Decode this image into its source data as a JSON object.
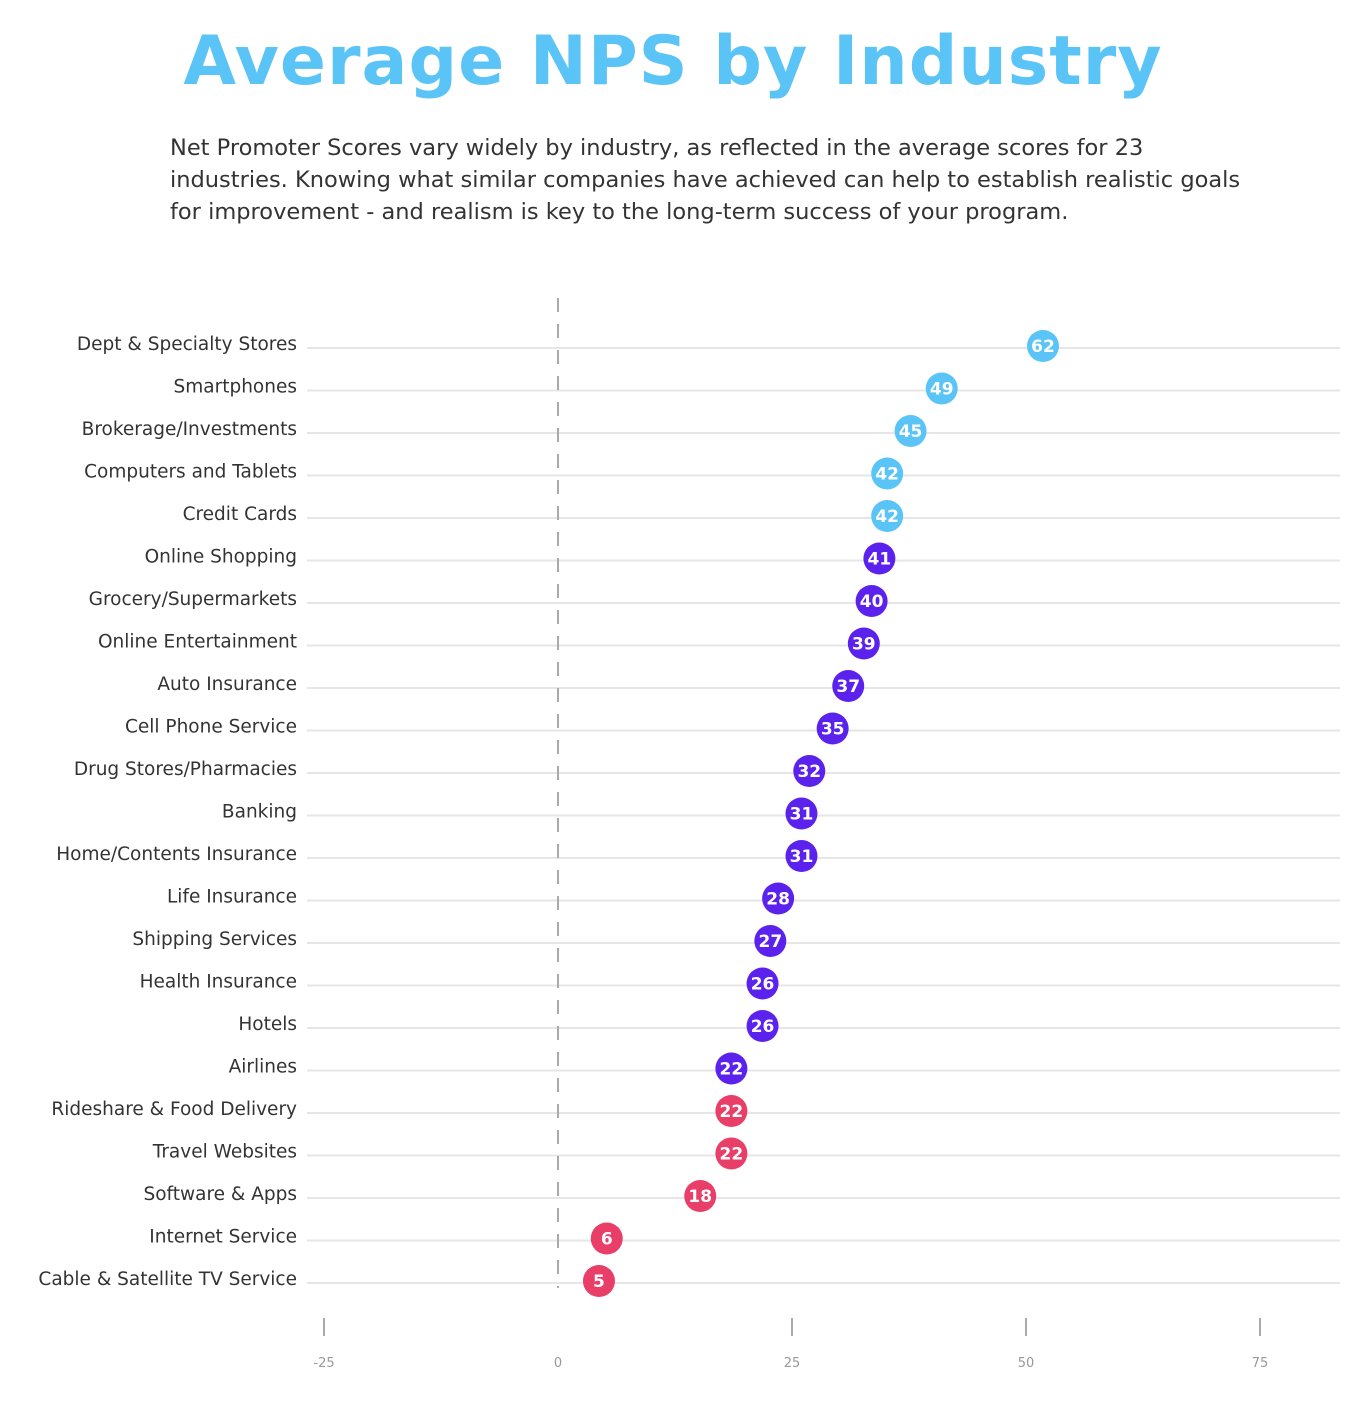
{
  "chart_data": {
    "type": "scatter",
    "title": "Average NPS by Industry",
    "subtitle": "Net Promoter Scores vary widely by industry, as reflected in the average scores for 23 industries. Knowing what similar companies have achieved can help to establish realistic goals for improvement - and realism is key to the long-term success of your program.",
    "xlabel": "",
    "ylabel": "",
    "xlim": [
      -25,
      75
    ],
    "x_ticks": [
      -25,
      0,
      25,
      50,
      75
    ],
    "reference_line": 0,
    "grid": true,
    "colors": {
      "high": "#5bc4f7",
      "mid": "#5b22ee",
      "low": "#e93e68"
    },
    "categories": [
      "Dept & Specialty Stores",
      "Smartphones",
      "Brokerage/Investments",
      "Computers and Tablets",
      "Credit Cards",
      "Online Shopping",
      "Grocery/Supermarkets",
      "Online Entertainment",
      "Auto Insurance",
      "Cell Phone Service",
      "Drug Stores/Pharmacies",
      "Banking",
      "Home/Contents Insurance",
      "Life Insurance",
      "Shipping Services",
      "Health Insurance",
      "Hotels",
      "Airlines",
      "Rideshare & Food Delivery",
      "Travel Websites",
      "Software & Apps",
      "Internet Service",
      "Cable & Satellite TV Service"
    ],
    "values": [
      62,
      49,
      45,
      42,
      42,
      41,
      40,
      39,
      37,
      35,
      32,
      31,
      31,
      28,
      27,
      26,
      26,
      22,
      22,
      22,
      18,
      6,
      5
    ],
    "groups": [
      "high",
      "high",
      "high",
      "high",
      "high",
      "mid",
      "mid",
      "mid",
      "mid",
      "mid",
      "mid",
      "mid",
      "mid",
      "mid",
      "mid",
      "mid",
      "mid",
      "mid",
      "low",
      "low",
      "low",
      "low",
      "low"
    ]
  }
}
